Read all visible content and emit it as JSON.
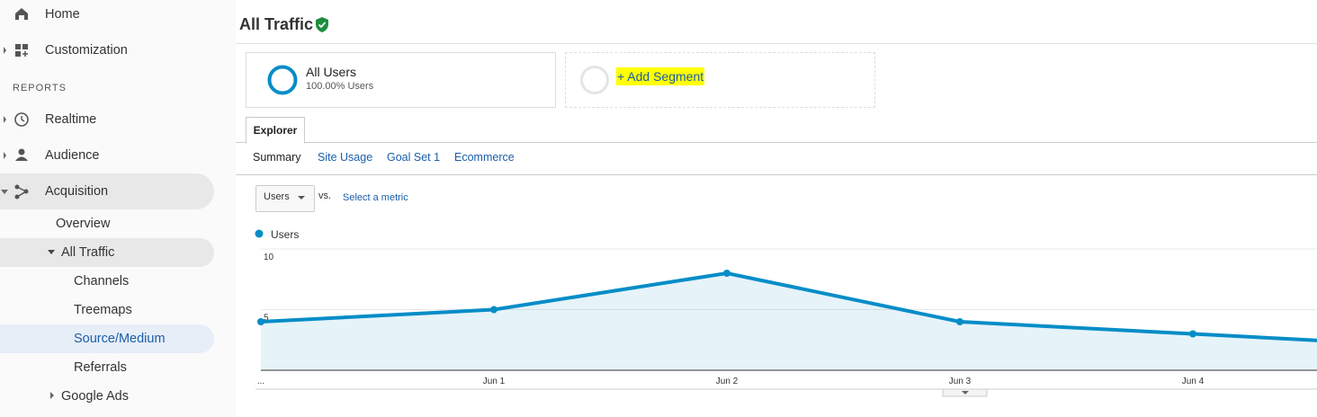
{
  "sidebar": {
    "top": [
      "Home",
      "Customization"
    ],
    "section": "REPORTS",
    "reports": [
      "Realtime",
      "Audience",
      "Acquisition"
    ],
    "sub": [
      "Overview",
      "All Traffic",
      "Channels",
      "Treemaps",
      "Source/Medium",
      "Referrals",
      "Google Ads"
    ]
  },
  "header": {
    "title": "All Traffic"
  },
  "segments": {
    "active": {
      "name": "All Users",
      "detail": "100.00% Users"
    },
    "add": "+ Add Segment"
  },
  "tabs": {
    "main": "Explorer",
    "sub": [
      "Summary",
      "Site Usage",
      "Goal Set 1",
      "Ecommerce"
    ]
  },
  "metric": {
    "selected": "Users",
    "vs": "vs.",
    "other": "Select a metric"
  },
  "chart_data": {
    "type": "line",
    "categories": [
      "...",
      "Jun 1",
      "Jun 2",
      "Jun 3",
      "Jun 4",
      null
    ],
    "series": [
      {
        "name": "Users",
        "color": "#058dc7",
        "values": [
          4,
          5,
          8,
          4,
          3,
          2
        ]
      }
    ],
    "ylim": [
      0,
      10
    ],
    "yticks": [
      5,
      10
    ],
    "grid": true,
    "area": true
  }
}
